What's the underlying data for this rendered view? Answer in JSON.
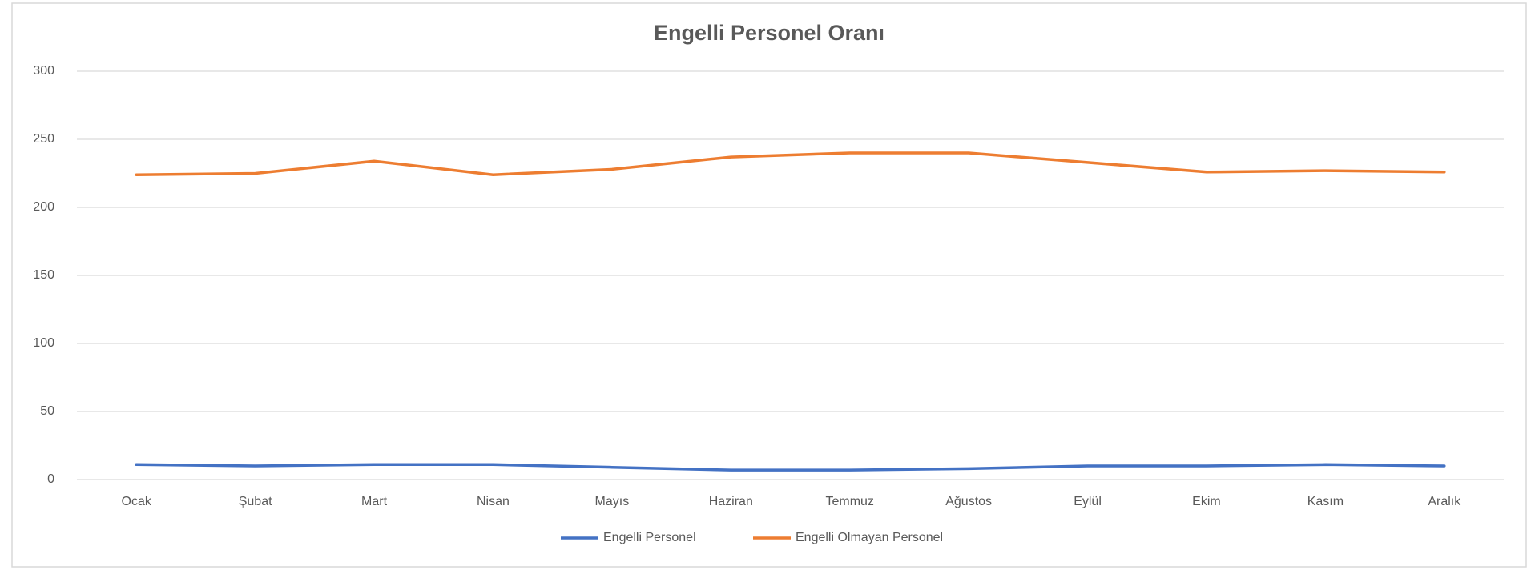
{
  "chart_data": {
    "type": "line",
    "title": "Engelli Personel Oranı",
    "categories": [
      "Ocak",
      "Şubat",
      "Mart",
      "Nisan",
      "Mayıs",
      "Haziran",
      "Temmuz",
      "Ağustos",
      "Eylül",
      "Ekim",
      "Kasım",
      "Aralık"
    ],
    "series": [
      {
        "name": "Engelli Personel",
        "color": "#4472c4",
        "values": [
          11,
          10,
          11,
          11,
          9,
          7,
          7,
          8,
          10,
          10,
          11,
          10
        ]
      },
      {
        "name": "Engelli Olmayan Personel",
        "color": "#ed7d31",
        "values": [
          224,
          225,
          234,
          224,
          228,
          237,
          240,
          240,
          233,
          226,
          227,
          226
        ]
      }
    ],
    "ylim": [
      0,
      300
    ],
    "yticks": [
      0,
      50,
      100,
      150,
      200,
      250,
      300
    ],
    "grid": true,
    "legend": "bottom"
  }
}
